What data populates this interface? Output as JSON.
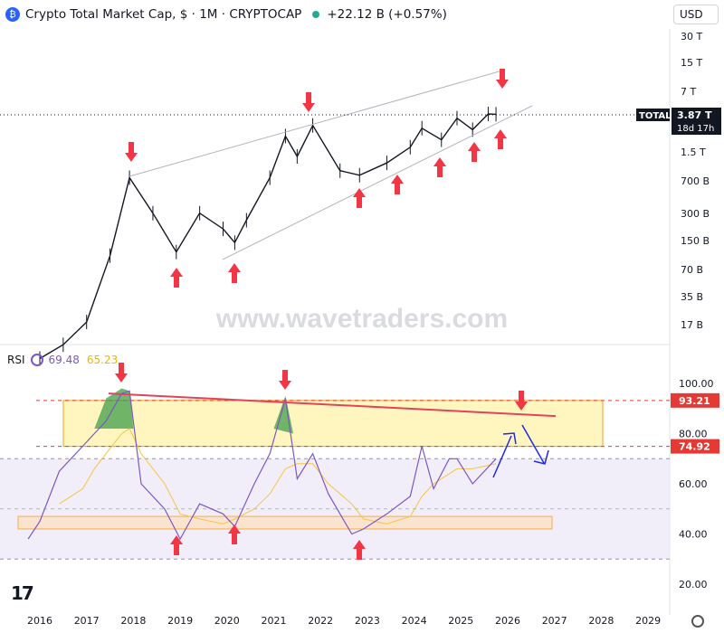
{
  "header": {
    "title": "Crypto Total Market Cap, $ · 1M · CRYPTOCAP",
    "change": "+22.12 B (+0.57%)",
    "currency": "USD"
  },
  "price_scale_labels": [
    "30 T",
    "15 T",
    "7 T",
    "1.5 T",
    "700 B",
    "300 B",
    "150 B",
    "70 B",
    "35 B",
    "17 B"
  ],
  "rsi_scale_labels": [
    "100.00",
    "80.00",
    "60.00",
    "40.00",
    "20.00"
  ],
  "x_labels": [
    "2016",
    "2017",
    "2018",
    "2019",
    "2020",
    "2021",
    "2022",
    "2023",
    "2024",
    "2025",
    "2026",
    "2027",
    "2028",
    "2029"
  ],
  "last_price": {
    "symbol": "TOTAL",
    "value": "3.87 T",
    "countdown": "18d 17h"
  },
  "rsi": {
    "label": "RSI",
    "value": "69.48",
    "ma_value": "65.23",
    "marker_upper": "93.21",
    "marker_lower": "74.92"
  },
  "watermark": "www.wavetraders.com",
  "colors": {
    "up_arrow": "#f23645",
    "line": "#7e57c2",
    "ma": "#f5c542",
    "trendline_red": "#e0445a",
    "wedge": "#b2b5be",
    "blue_projection": "#1e2ae0",
    "zone_yellow": "#fff6bf",
    "zone_border": "#f0a020",
    "green_fill": "#3f9e4a"
  },
  "chart_data": [
    {
      "type": "line",
      "title": "Crypto Total Market Cap",
      "y_scale": "log",
      "x": [
        "2016-01",
        "2016-07",
        "2017-01",
        "2017-07",
        "2017-12",
        "2018-06",
        "2018-12",
        "2019-06",
        "2019-12",
        "2020-03",
        "2020-06",
        "2020-12",
        "2021-04",
        "2021-07",
        "2021-11",
        "2022-06",
        "2022-11",
        "2023-06",
        "2023-12",
        "2024-03",
        "2024-08",
        "2024-12",
        "2025-04",
        "2025-08",
        "2025-10"
      ],
      "values_usd": [
        7000000000.0,
        10000000000.0,
        18000000000.0,
        100000000000.0,
        750000000000.0,
        300000000000.0,
        110000000000.0,
        300000000000.0,
        200000000000.0,
        140000000000.0,
        250000000000.0,
        750000000000.0,
        2200000000000.0,
        1300000000000.0,
        2900000000000.0,
        900000000000.0,
        800000000000.0,
        1100000000000.0,
        1650000000000.0,
        2700000000000.0,
        2000000000000.0,
        3500000000000.0,
        2600000000000.0,
        3900000000000.0,
        3870000000000.0
      ],
      "ylim": [
        "7 B",
        "40 T"
      ]
    },
    {
      "type": "line",
      "title": "RSI",
      "x": [
        "2015-10",
        "2016-01",
        "2016-06",
        "2016-12",
        "2017-03",
        "2017-06",
        "2017-10",
        "2017-12",
        "2018-03",
        "2018-09",
        "2019-01",
        "2019-06",
        "2019-12",
        "2020-03",
        "2020-08",
        "2020-12",
        "2021-04",
        "2021-07",
        "2021-11",
        "2022-03",
        "2022-09",
        "2022-12",
        "2023-06",
        "2023-12",
        "2024-03",
        "2024-06",
        "2024-10",
        "2024-12",
        "2025-04",
        "2025-10"
      ],
      "series": [
        {
          "values": [
            38,
            45,
            65,
            75,
            80,
            85,
            96,
            97,
            60,
            50,
            38,
            52,
            48,
            43,
            60,
            72,
            94,
            62,
            72,
            56,
            40,
            42,
            48,
            55,
            75,
            58,
            70,
            70,
            60,
            70
          ]
        },
        {
          "values": [
            null,
            null,
            52,
            58,
            66,
            72,
            80,
            82,
            72,
            60,
            48,
            46,
            44,
            46,
            50,
            56,
            66,
            68,
            68,
            60,
            52,
            46,
            44,
            47,
            55,
            60,
            64,
            66,
            66,
            68
          ]
        }
      ],
      "ylim": [
        20,
        100
      ]
    }
  ]
}
